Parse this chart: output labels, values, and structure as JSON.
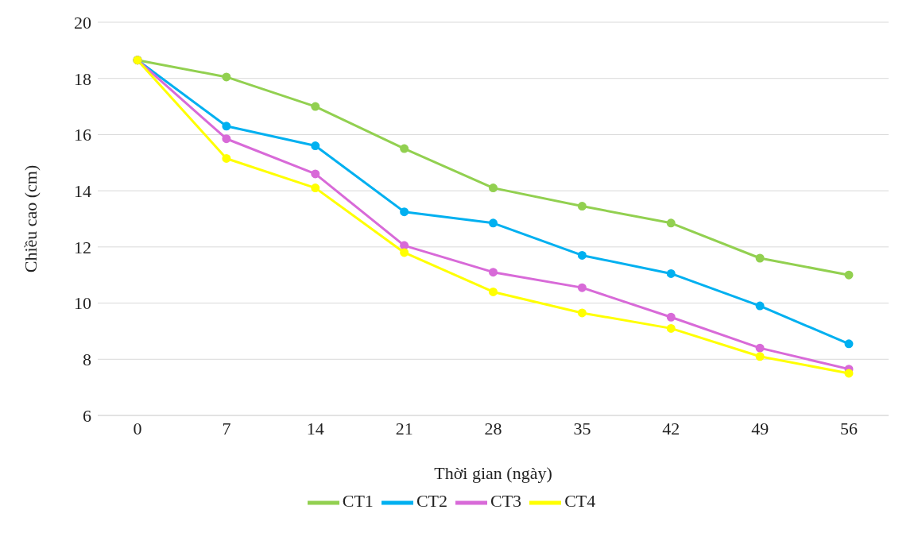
{
  "chart_data": {
    "type": "line",
    "xlabel": "Thời gian (ngày)",
    "ylabel": "Chiều cao (cm)",
    "categories": [
      "0",
      "7",
      "14",
      "21",
      "28",
      "35",
      "42",
      "49",
      "56"
    ],
    "ylim": [
      6,
      20
    ],
    "yticks": [
      6,
      8,
      10,
      12,
      14,
      16,
      18,
      20
    ],
    "grid": "y",
    "legend": "bottom",
    "marker": "circle",
    "line_style": "solid",
    "series": [
      {
        "name": "CT1",
        "color": "#92d050",
        "values": [
          18.65,
          18.05,
          17.0,
          15.5,
          14.1,
          13.45,
          12.85,
          11.6,
          11.0
        ]
      },
      {
        "name": "CT2",
        "color": "#00b0f0",
        "values": [
          18.65,
          16.3,
          15.6,
          13.25,
          12.85,
          11.7,
          11.05,
          9.9,
          8.55
        ]
      },
      {
        "name": "CT3",
        "color": "#d86ad8",
        "values": [
          18.65,
          15.85,
          14.6,
          12.05,
          11.1,
          10.55,
          9.5,
          8.4,
          7.65
        ]
      },
      {
        "name": "CT4",
        "color": "#ffff00",
        "values": [
          18.65,
          15.15,
          14.1,
          11.8,
          10.4,
          9.65,
          9.1,
          8.1,
          7.5
        ]
      }
    ]
  }
}
